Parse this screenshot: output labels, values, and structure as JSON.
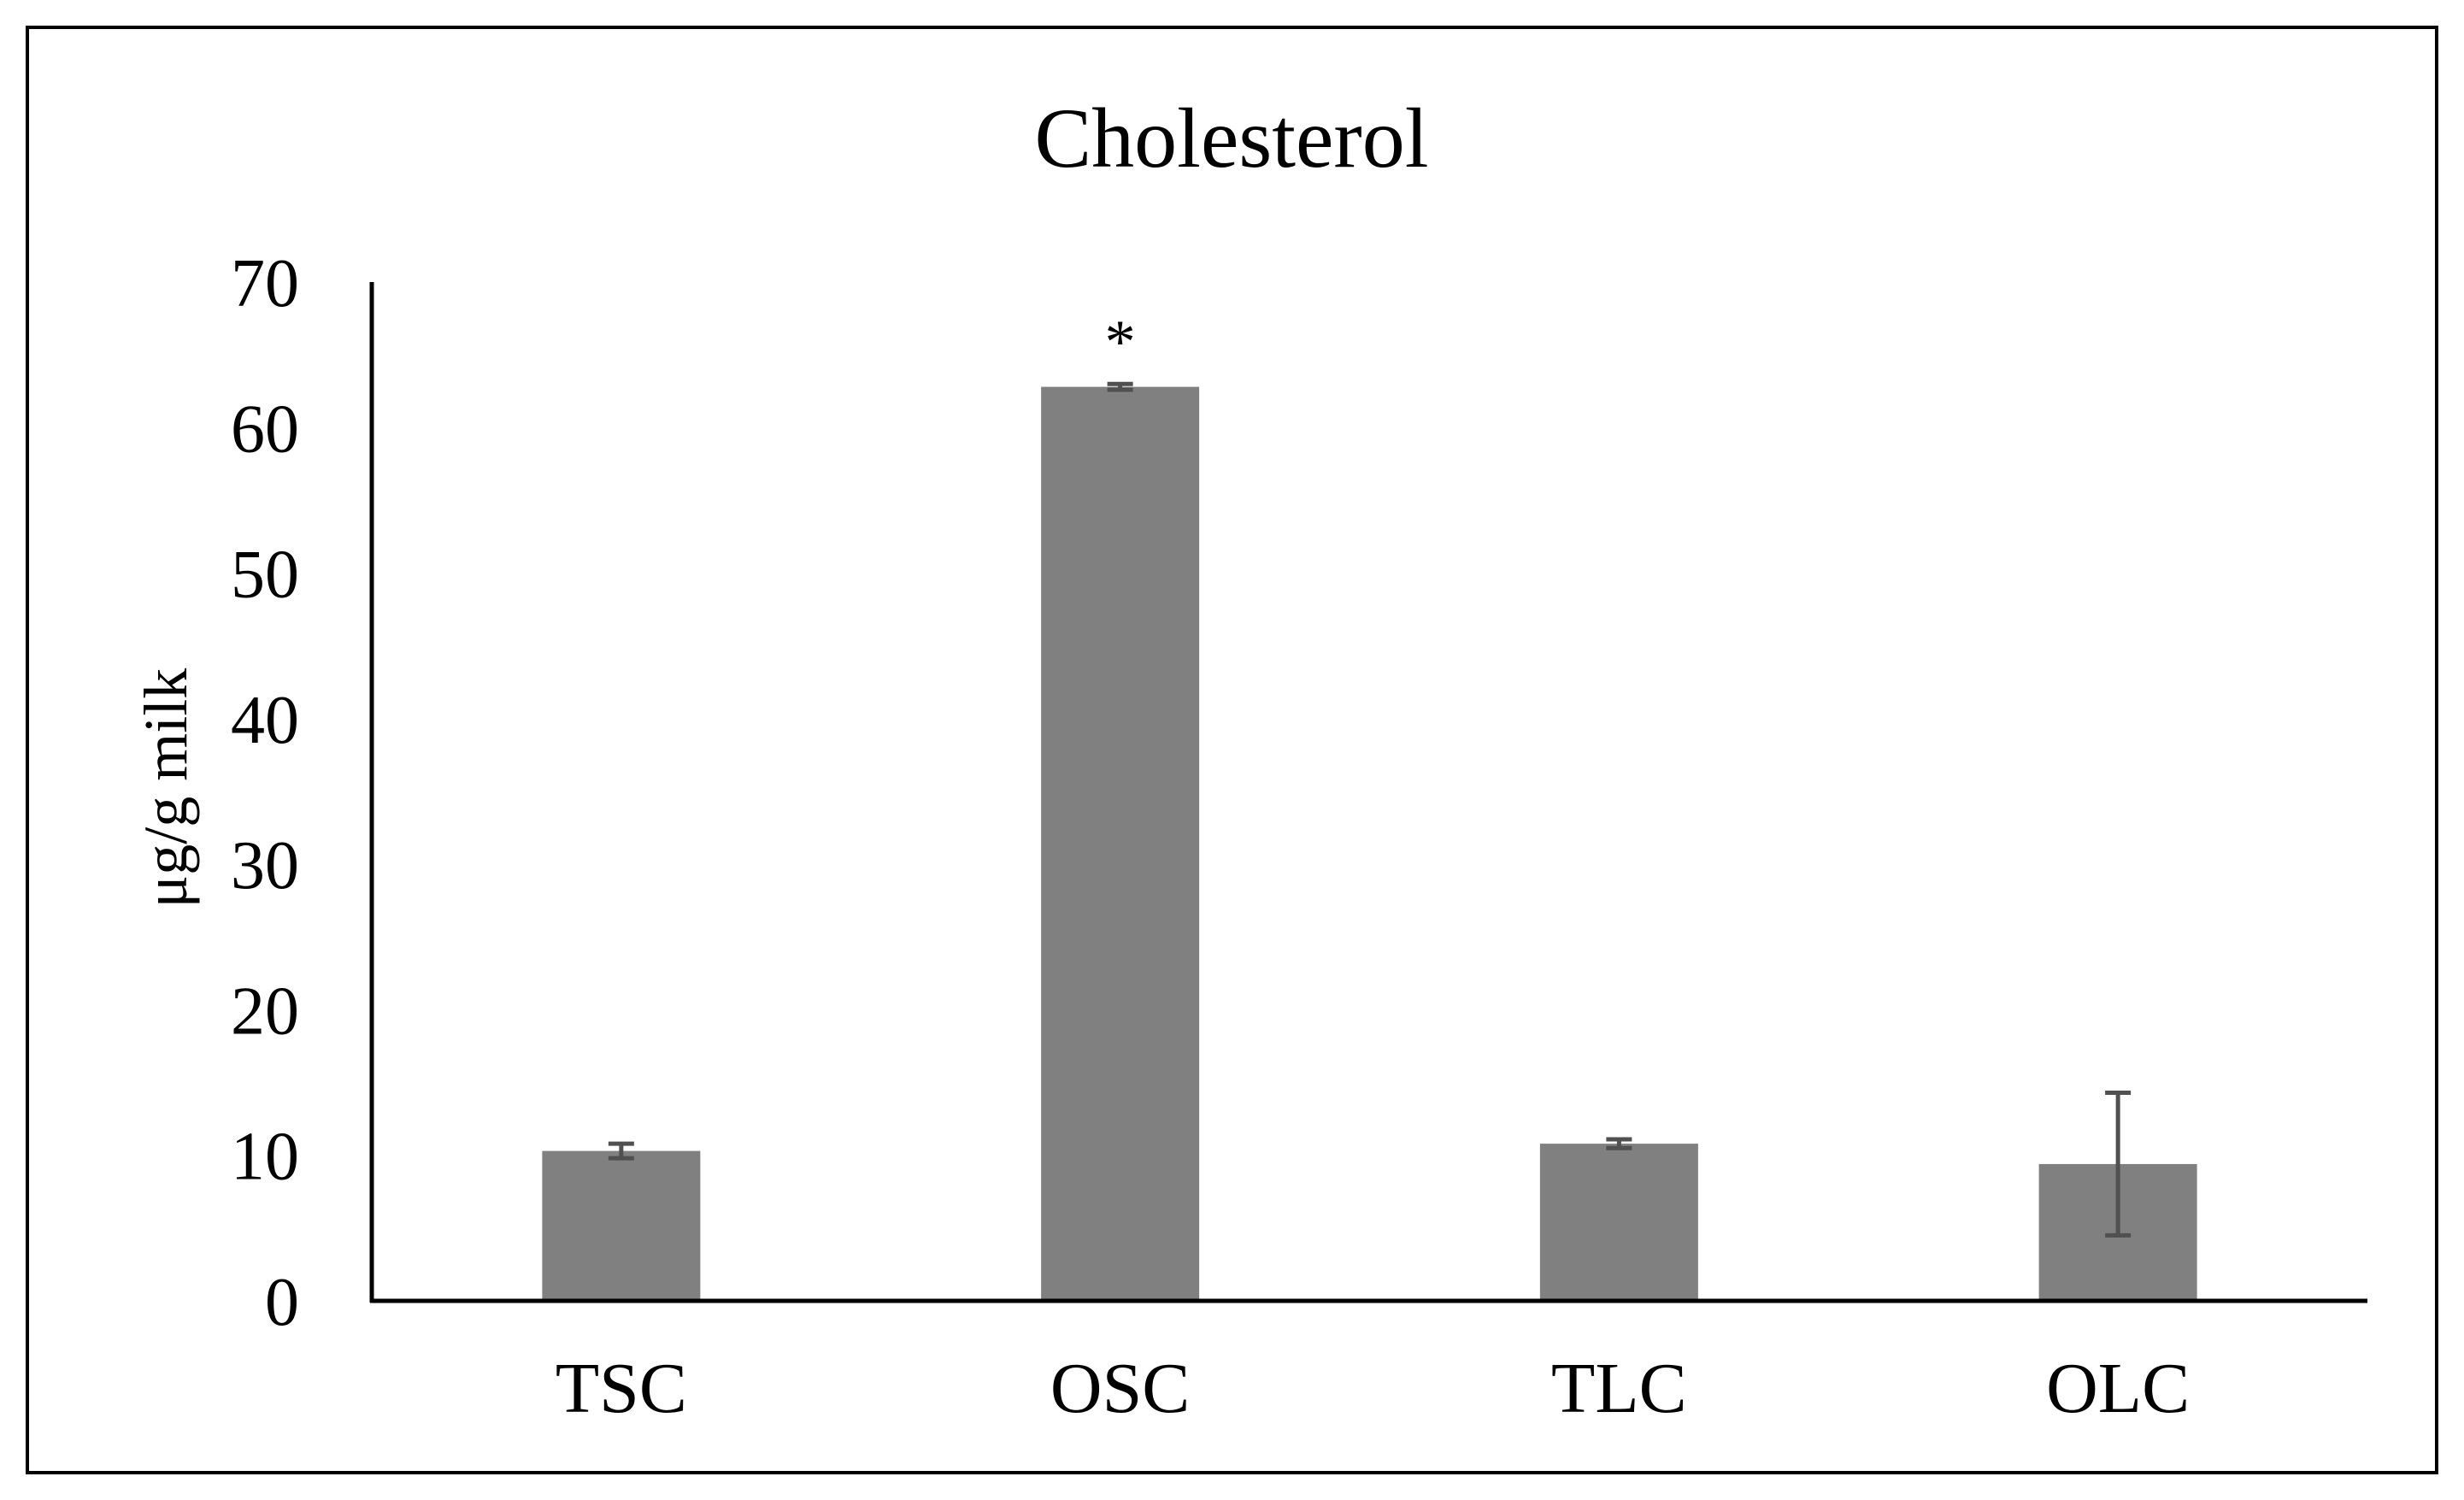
{
  "chart_data": {
    "type": "bar",
    "title": "Cholesterol",
    "xlabel": "",
    "ylabel": "μg/g milk",
    "categories": [
      "TSC",
      "OSC",
      "TLC",
      "OLC"
    ],
    "values": [
      10.3,
      62.8,
      10.8,
      9.4
    ],
    "errors": [
      0.5,
      0.2,
      0.3,
      4.9
    ],
    "annotations": [
      {
        "category": "OSC",
        "text": "*"
      }
    ],
    "ylim": [
      0,
      70
    ],
    "yticks": [
      0,
      10,
      20,
      30,
      40,
      50,
      60,
      70
    ],
    "grid": false,
    "legend": "none",
    "colors": {
      "bar": "#808080",
      "error_bar": "#505050",
      "axis": "#000000"
    }
  }
}
